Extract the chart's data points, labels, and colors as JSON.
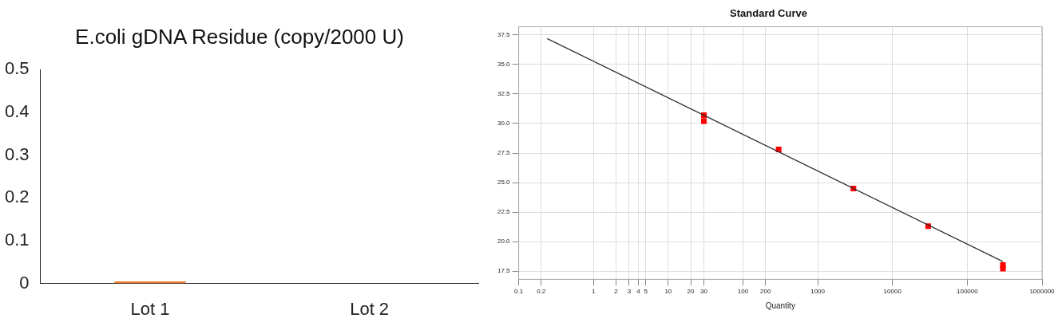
{
  "chart_data": [
    {
      "type": "bar",
      "title": "E.coli gDNA Residue (copy/2000 U)",
      "categories": [
        "Lot 1",
        "Lot 2"
      ],
      "values": [
        0.005,
        0
      ],
      "color": "#ed7d31",
      "ylim": [
        0,
        0.5
      ],
      "yticks": [
        0,
        0.1,
        0.2,
        0.3,
        0.4,
        0.5
      ],
      "grid": false,
      "legend": false
    },
    {
      "type": "scatter",
      "title": "Standard Curve",
      "xlabel": "Quantity",
      "log": "x",
      "xlim": [
        0.1,
        1000000
      ],
      "xticks": [
        0.1,
        0.2,
        1,
        2,
        3,
        4,
        5,
        10,
        20,
        30,
        100,
        200,
        1000,
        10000,
        100000,
        1000000
      ],
      "ylim": [
        16.8,
        38.2
      ],
      "yticks": [
        {
          "value": 17.5,
          "label": "17.5"
        },
        {
          "value": 20,
          "label": "20.0"
        },
        {
          "value": 22.5,
          "label": "22.5"
        },
        {
          "value": 25,
          "label": "25.0"
        },
        {
          "value": 27.5,
          "label": "27.5"
        },
        {
          "value": 30,
          "label": "30.0"
        },
        {
          "value": 32.5,
          "label": "32.5"
        },
        {
          "value": 35,
          "label": "35.0"
        },
        {
          "value": 37.5,
          "label": "37.5"
        }
      ],
      "grid": true,
      "legend": false,
      "series": [
        {
          "type": "line",
          "color": "#333333",
          "marker": "none",
          "x": [
            0.24,
            300000
          ],
          "values": [
            37.2,
            18.3
          ]
        },
        {
          "type": "scatter",
          "color": "#ff0000",
          "marker": "square",
          "x": [
            30,
            30,
            300,
            3000,
            30000,
            300000,
            300000
          ],
          "values": [
            30.7,
            30.2,
            27.8,
            24.5,
            21.3,
            18.0,
            17.7
          ]
        }
      ]
    }
  ]
}
